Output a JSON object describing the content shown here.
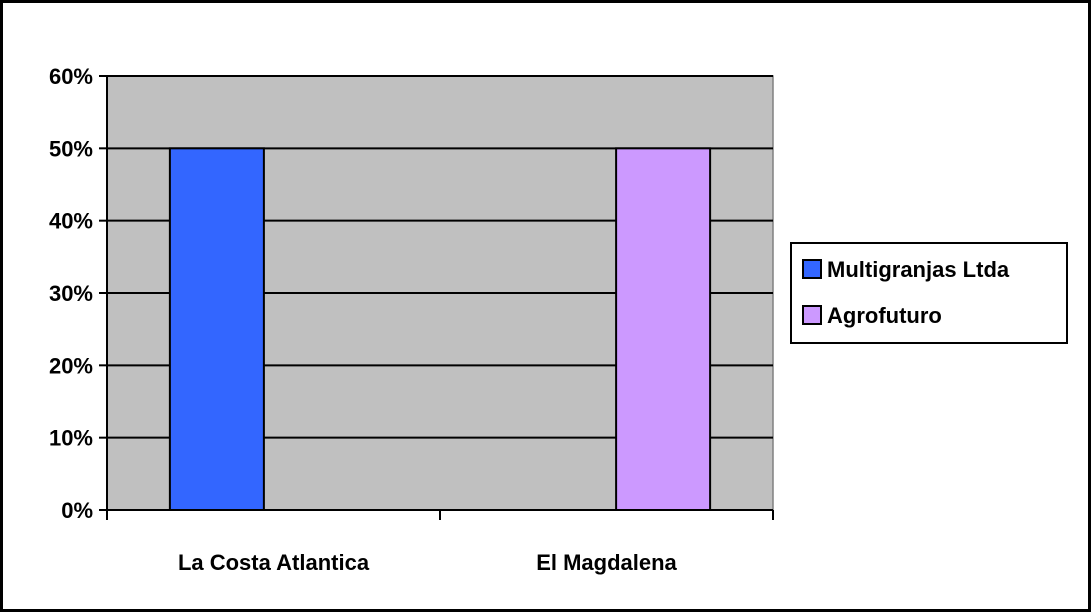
{
  "chart_data": {
    "type": "bar",
    "categories": [
      "La Costa Atlantica",
      "El Magdalena"
    ],
    "series": [
      {
        "name": "Multigranjas Ltda",
        "values": [
          50,
          0
        ],
        "color": "#3366FF"
      },
      {
        "name": "Agrofuturo",
        "values": [
          0,
          50
        ],
        "color": "#CC99FF"
      }
    ],
    "ylim": [
      0,
      60
    ],
    "yticks": [
      0,
      10,
      20,
      30,
      40,
      50,
      60
    ],
    "ytick_labels": [
      "0%",
      "10%",
      "20%",
      "30%",
      "40%",
      "50%",
      "60%"
    ],
    "plot_background": "#C0C0C0",
    "grid": true,
    "legend": "right"
  }
}
